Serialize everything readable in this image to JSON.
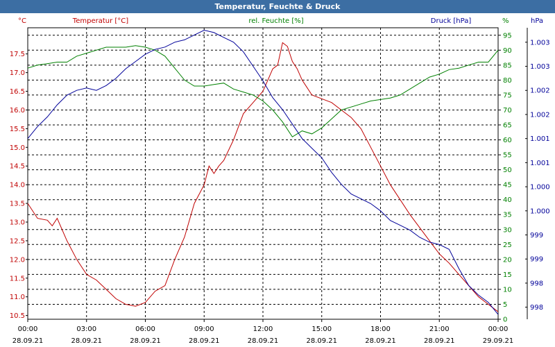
{
  "window": {
    "title": "Temperatur, Feuchte & Druck"
  },
  "colors": {
    "temperature": "#c00000",
    "humidity": "#008000",
    "pressure": "#000099",
    "title_bar": "#3c6ea3"
  },
  "chart_data": {
    "type": "line",
    "title": "Temperatur, Feuchte & Druck",
    "grid": true,
    "x_ticks": [
      {
        "time": "00:00",
        "date": "28.09.21"
      },
      {
        "time": "03:00",
        "date": "28.09.21"
      },
      {
        "time": "06:00",
        "date": "28.09.21"
      },
      {
        "time": "09:00",
        "date": "28.09.21"
      },
      {
        "time": "12:00",
        "date": "28.09.21"
      },
      {
        "time": "15:00",
        "date": "28.09.21"
      },
      {
        "time": "18:00",
        "date": "28.09.21"
      },
      {
        "time": "21:00",
        "date": "28.09.21"
      },
      {
        "time": "00:00",
        "date": "29.09.21"
      }
    ],
    "xlim": [
      0,
      24
    ],
    "axes": {
      "temperature": {
        "label": "Temperatur [°C]",
        "unit": "°C",
        "ylim": [
          10.4,
          18.2
        ],
        "ticks": [
          "10.5",
          "11.0",
          "11.5",
          "12.0",
          "12.5",
          "13.0",
          "13.5",
          "14.0",
          "14.5",
          "15.0",
          "15.5",
          "16.0",
          "16.5",
          "17.0",
          "17.5"
        ],
        "tick_values": [
          10.5,
          11.0,
          11.5,
          12.0,
          12.5,
          13.0,
          13.5,
          14.0,
          14.5,
          15.0,
          15.5,
          16.0,
          16.5,
          17.0,
          17.5
        ]
      },
      "humidity": {
        "label": "rel. Feuchte [%]",
        "unit": "%",
        "ylim": [
          0,
          97.5
        ],
        "ticks": [
          "0",
          "5",
          "10",
          "15",
          "20",
          "25",
          "30",
          "35",
          "40",
          "45",
          "50",
          "55",
          "60",
          "65",
          "70",
          "75",
          "80",
          "85",
          "90",
          "95"
        ],
        "tick_values": [
          0,
          5,
          10,
          15,
          20,
          25,
          30,
          35,
          40,
          45,
          50,
          55,
          60,
          65,
          70,
          75,
          80,
          85,
          90,
          95
        ]
      },
      "pressure": {
        "label": "Druck [hPa]",
        "unit": "hPa",
        "ticks": [
          "998",
          "998",
          "999",
          "999",
          "1.000",
          "1.000",
          "1.001",
          "1.001",
          "1.002",
          "1.002",
          "1.003",
          "1.003"
        ],
        "tick_values": [
          997.5,
          998,
          998.5,
          999,
          999.5,
          1000,
          1000.5,
          1001,
          1001.5,
          1002,
          1002.5,
          1003
        ],
        "ylim": [
          997.25,
          1003.3
        ]
      }
    },
    "series": [
      {
        "name": "Temperatur [°C]",
        "axis": "temperature",
        "x": [
          0,
          0.5,
          1,
          1.25,
          1.5,
          2,
          2.5,
          3,
          3.5,
          4,
          4.5,
          5,
          5.5,
          6,
          6.5,
          7,
          7.5,
          8,
          8.5,
          9,
          9.25,
          9.5,
          9.75,
          10,
          10.5,
          11,
          11.5,
          12,
          12.25,
          12.5,
          12.75,
          13,
          13.25,
          13.5,
          13.75,
          14,
          14.25,
          14.5,
          15,
          15.5,
          16,
          16.5,
          17,
          17.5,
          18,
          18.5,
          19,
          19.5,
          20,
          20.5,
          21,
          21.5,
          22,
          22.5,
          23,
          23.5,
          24
        ],
        "values": [
          13.5,
          13.1,
          13.05,
          12.9,
          13.1,
          12.5,
          12.0,
          11.6,
          11.45,
          11.2,
          10.95,
          10.8,
          10.75,
          10.85,
          11.15,
          11.3,
          12.0,
          12.6,
          13.5,
          14.0,
          14.5,
          14.3,
          14.5,
          14.65,
          15.2,
          15.9,
          16.2,
          16.5,
          16.8,
          17.1,
          17.2,
          17.8,
          17.7,
          17.3,
          17.1,
          16.8,
          16.6,
          16.4,
          16.3,
          16.2,
          16.0,
          15.8,
          15.5,
          15.0,
          14.5,
          14.0,
          13.6,
          13.2,
          12.85,
          12.5,
          12.15,
          11.9,
          11.6,
          11.3,
          11.0,
          10.8,
          10.6
        ]
      },
      {
        "name": "rel. Feuchte [%]",
        "axis": "humidity",
        "x": [
          0,
          0.5,
          1,
          1.5,
          2,
          2.5,
          3,
          3.5,
          4,
          4.5,
          5,
          5.5,
          6,
          6.5,
          7,
          7.5,
          8,
          8.5,
          9,
          9.5,
          10,
          10.5,
          11,
          11.5,
          12,
          12.5,
          13,
          13.5,
          14,
          14.5,
          15,
          15.5,
          16,
          16.5,
          17,
          17.5,
          18,
          18.5,
          19,
          19.5,
          20,
          20.5,
          21,
          21.5,
          22,
          22.5,
          23,
          23.5,
          24
        ],
        "values": [
          84,
          85,
          85.5,
          86,
          86,
          88,
          89,
          90,
          91,
          91,
          91,
          91.5,
          91,
          90,
          88,
          84,
          80,
          78,
          78,
          78.5,
          79,
          77,
          76,
          75,
          73,
          70,
          66,
          61,
          63,
          62,
          64,
          67,
          70,
          71,
          72,
          73,
          73.5,
          74,
          75,
          77,
          79,
          81,
          82,
          83.5,
          84,
          85,
          86,
          86,
          90
        ]
      },
      {
        "name": "Druck [hPa]",
        "axis": "pressure",
        "x": [
          0,
          0.5,
          1,
          1.5,
          2,
          2.5,
          3,
          3.5,
          4,
          4.5,
          5,
          5.5,
          6,
          6.5,
          7,
          7.5,
          8,
          8.5,
          9,
          9.5,
          10,
          10.5,
          11,
          11.5,
          12,
          12.5,
          13,
          13.5,
          14,
          14.5,
          15,
          15.5,
          16,
          16.5,
          17,
          17.5,
          18,
          18.5,
          19,
          19.5,
          20,
          20.5,
          21,
          21.5,
          22,
          22.5,
          23,
          23.5,
          24
        ],
        "values": [
          1001.0,
          1001.25,
          1001.45,
          1001.7,
          1001.9,
          1002.0,
          1002.05,
          1002.0,
          1002.1,
          1002.25,
          1002.45,
          1002.6,
          1002.75,
          1002.85,
          1002.9,
          1003.0,
          1003.05,
          1003.15,
          1003.25,
          1003.2,
          1003.1,
          1003.0,
          1002.8,
          1002.5,
          1002.2,
          1001.85,
          1001.6,
          1001.3,
          1001.0,
          1000.8,
          1000.6,
          1000.3,
          1000.05,
          999.85,
          999.75,
          999.65,
          999.5,
          999.3,
          999.2,
          999.1,
          998.95,
          998.85,
          998.8,
          998.7,
          998.3,
          997.95,
          997.75,
          997.6,
          997.35
        ]
      }
    ]
  }
}
